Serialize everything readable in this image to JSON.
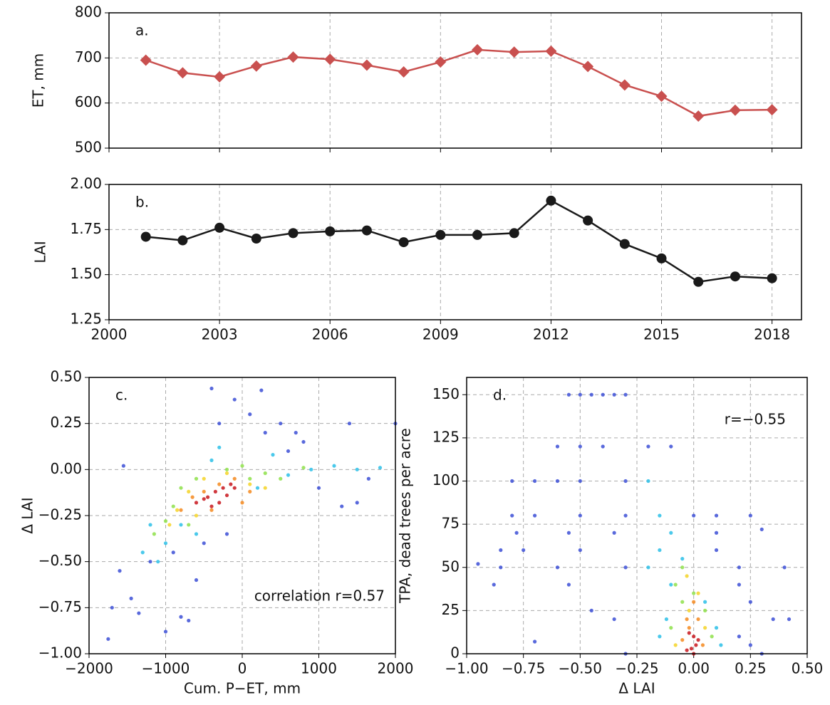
{
  "chart_data": [
    {
      "type": "line",
      "label": "a.",
      "ylabel": "ET, mm",
      "marker": "diamond",
      "color": "#c9504f",
      "grid": true,
      "show_xtick_labels": false,
      "x": [
        2001,
        2002,
        2003,
        2004,
        2005,
        2006,
        2007,
        2008,
        2009,
        2010,
        2011,
        2012,
        2013,
        2014,
        2015,
        2016,
        2017,
        2018
      ],
      "values": [
        695,
        667,
        658,
        682,
        702,
        697,
        684,
        669,
        691,
        718,
        713,
        715,
        681,
        640,
        615,
        571,
        584,
        585
      ],
      "xlim": [
        2000,
        2018.8
      ],
      "xticks": [
        2000,
        2003,
        2006,
        2009,
        2012,
        2015,
        2018
      ],
      "ylim": [
        500,
        800
      ],
      "yticks": [
        500,
        600,
        700,
        800
      ]
    },
    {
      "type": "line",
      "label": "b.",
      "ylabel": "LAI",
      "marker": "circle",
      "color": "#1a1a1a",
      "grid": true,
      "show_xtick_labels": true,
      "x": [
        2001,
        2002,
        2003,
        2004,
        2005,
        2006,
        2007,
        2008,
        2009,
        2010,
        2011,
        2012,
        2013,
        2014,
        2015,
        2016,
        2017,
        2018
      ],
      "values": [
        1.71,
        1.69,
        1.76,
        1.7,
        1.73,
        1.74,
        1.745,
        1.68,
        1.72,
        1.72,
        1.73,
        1.91,
        1.8,
        1.67,
        1.59,
        1.46,
        1.49,
        1.48
      ],
      "xlim": [
        2000,
        2018.8
      ],
      "xticks": [
        2000,
        2003,
        2006,
        2009,
        2012,
        2015,
        2018
      ],
      "ylim": [
        1.25,
        2.0
      ],
      "yticks": [
        {
          "value": 1.25,
          "label": "1.25"
        },
        {
          "value": 1.5,
          "label": "1.50"
        },
        {
          "value": 1.75,
          "label": "1.75"
        },
        {
          "value": 2.0,
          "label": "2.00"
        }
      ]
    },
    {
      "type": "scatter",
      "label": "c.",
      "note": "correlation r=0.57",
      "xlabel": "Cum. P−ET, mm",
      "ylabel": "Δ LAI",
      "grid": true,
      "xlim": [
        -2000,
        2000
      ],
      "xticks": [
        {
          "value": -2000,
          "label": "−2000"
        },
        {
          "value": -1000,
          "label": "−1000"
        },
        0,
        1000,
        2000
      ],
      "ylim": [
        -1.0,
        0.5
      ],
      "yticks": [
        {
          "value": -1.0,
          "label": "−1.00"
        },
        {
          "value": -0.75,
          "label": "−0.75"
        },
        {
          "value": -0.5,
          "label": "−0.50"
        },
        {
          "value": -0.25,
          "label": "−0.25"
        },
        {
          "value": 0,
          "label": "0.00"
        },
        {
          "value": 0.25,
          "label": "0.25"
        },
        {
          "value": 0.5,
          "label": "0.50"
        }
      ],
      "series": [
        {
          "color": "#3c4fd6",
          "x": [
            -1750,
            -1700,
            -1600,
            -1450,
            -1350,
            -1000,
            -800,
            -700,
            -600,
            -500,
            -400,
            -300,
            -100,
            100,
            250,
            300,
            500,
            700,
            800,
            1000,
            1300,
            1500,
            1650,
            2000,
            -200,
            -900,
            -1200,
            -1550,
            600,
            1400
          ],
          "values": [
            -0.92,
            -0.75,
            -0.55,
            -0.7,
            -0.78,
            -0.88,
            -0.8,
            -0.82,
            -0.6,
            -0.4,
            0.44,
            0.25,
            0.38,
            0.3,
            0.43,
            0.2,
            0.25,
            0.2,
            0.15,
            -0.1,
            -0.2,
            -0.18,
            -0.05,
            0.25,
            -0.35,
            -0.45,
            -0.5,
            0.02,
            0.1,
            0.25
          ]
        },
        {
          "color": "#2bc0e8",
          "x": [
            -1300,
            -1100,
            -1000,
            -800,
            -600,
            -400,
            200,
            600,
            900,
            1200,
            1500,
            1800,
            -1200,
            -300,
            400
          ],
          "values": [
            -0.45,
            -0.5,
            -0.4,
            -0.3,
            -0.35,
            0.05,
            -0.1,
            -0.03,
            0.0,
            0.02,
            0.0,
            0.01,
            -0.3,
            0.12,
            0.08
          ]
        },
        {
          "color": "#8ee04a",
          "x": [
            -1150,
            -1000,
            -900,
            -800,
            -600,
            0,
            300,
            500,
            800,
            -200,
            -700,
            100
          ],
          "values": [
            -0.35,
            -0.28,
            -0.2,
            -0.1,
            -0.05,
            0.02,
            -0.02,
            -0.05,
            0.01,
            0.0,
            -0.3,
            -0.05
          ]
        },
        {
          "color": "#f5d327",
          "x": [
            -950,
            -850,
            -700,
            -500,
            -200,
            100,
            300,
            -600
          ],
          "values": [
            -0.3,
            -0.22,
            -0.12,
            -0.05,
            -0.02,
            -0.08,
            -0.1,
            -0.25
          ]
        },
        {
          "color": "#f58a1f",
          "x": [
            -800,
            -650,
            -500,
            -300,
            -100,
            100,
            -400,
            0
          ],
          "values": [
            -0.22,
            -0.15,
            -0.12,
            -0.08,
            -0.05,
            -0.12,
            -0.22,
            -0.18
          ]
        },
        {
          "color": "#c8161d",
          "x": [
            -600,
            -450,
            -350,
            -250,
            -150,
            -300,
            -200,
            -100,
            -400,
            -500
          ],
          "values": [
            -0.18,
            -0.15,
            -0.12,
            -0.1,
            -0.08,
            -0.18,
            -0.14,
            -0.1,
            -0.2,
            -0.16
          ]
        }
      ]
    },
    {
      "type": "scatter",
      "label": "d.",
      "note": "r=−0.55",
      "xlabel": "Δ LAI",
      "ylabel": "TPA, dead trees per acre",
      "grid": true,
      "xlim": [
        -1.0,
        0.5
      ],
      "xticks": [
        {
          "value": -1.0,
          "label": "−1.00"
        },
        {
          "value": -0.75,
          "label": "−0.75"
        },
        {
          "value": -0.5,
          "label": "−0.50"
        },
        {
          "value": -0.25,
          "label": "−0.25"
        },
        {
          "value": 0,
          "label": "0.00"
        },
        {
          "value": 0.25,
          "label": "0.25"
        },
        {
          "value": 0.5,
          "label": "0.50"
        }
      ],
      "ylim": [
        0,
        160
      ],
      "yticks": [
        0,
        25,
        50,
        75,
        100,
        125,
        150
      ],
      "series": [
        {
          "color": "#3c4fd6",
          "x": [
            -0.55,
            -0.5,
            -0.45,
            -0.4,
            -0.35,
            -0.3,
            -0.6,
            -0.5,
            -0.4,
            -0.2,
            -0.1,
            -0.8,
            -0.7,
            -0.6,
            -0.5,
            -0.3,
            -0.8,
            -0.7,
            -0.5,
            -0.3,
            0.0,
            0.1,
            0.25,
            -0.78,
            -0.55,
            -0.35,
            0.1,
            0.3,
            -0.85,
            -0.75,
            -0.5,
            0.1,
            -0.95,
            -0.85,
            -0.6,
            -0.3,
            0.2,
            0.4,
            -0.88,
            -0.55,
            0.2,
            0.25,
            0.35,
            0.42,
            -0.45,
            -0.35,
            0.2,
            0.25,
            -0.7,
            -0.3,
            0.3
          ],
          "values": [
            150,
            150,
            150,
            150,
            150,
            150,
            120,
            120,
            120,
            120,
            120,
            100,
            100,
            100,
            100,
            100,
            80,
            80,
            80,
            80,
            80,
            80,
            80,
            70,
            70,
            70,
            70,
            72,
            60,
            60,
            60,
            60,
            52,
            50,
            50,
            50,
            50,
            50,
            40,
            40,
            40,
            30,
            20,
            20,
            25,
            20,
            10,
            5,
            7,
            0,
            0
          ]
        },
        {
          "color": "#2bc0e8",
          "x": [
            -0.2,
            -0.15,
            -0.1,
            -0.15,
            -0.05,
            -0.2,
            -0.1,
            0.05,
            -0.12,
            0.1,
            -0.15,
            0.12
          ],
          "values": [
            100,
            80,
            70,
            60,
            55,
            50,
            40,
            30,
            20,
            15,
            10,
            5
          ]
        },
        {
          "color": "#8ee04a",
          "x": [
            -0.05,
            -0.08,
            0.0,
            -0.05,
            0.05,
            -0.1,
            0.08
          ],
          "values": [
            50,
            40,
            35,
            30,
            25,
            15,
            10
          ]
        },
        {
          "color": "#f5d327",
          "x": [
            -0.03,
            0.02,
            -0.02,
            0.05,
            -0.08
          ],
          "values": [
            45,
            35,
            25,
            15,
            5
          ]
        },
        {
          "color": "#f58a1f",
          "x": [
            0.0,
            -0.03,
            0.02,
            -0.02,
            0.04,
            -0.05
          ],
          "values": [
            30,
            20,
            20,
            15,
            5,
            8
          ]
        },
        {
          "color": "#c8161d",
          "x": [
            -0.02,
            0.0,
            0.01,
            -0.01,
            0.02,
            0.0,
            -0.03
          ],
          "values": [
            12,
            10,
            5,
            3,
            8,
            0,
            2
          ]
        }
      ]
    }
  ]
}
